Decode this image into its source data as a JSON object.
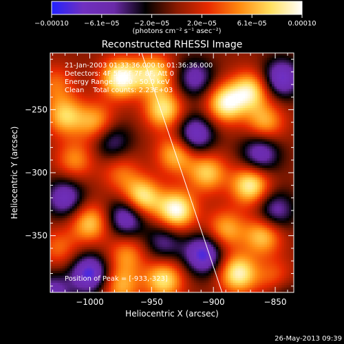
{
  "colorbar": {
    "tick_labels": [
      "−0.00010",
      "−6.1e−05",
      "−2.0e−05",
      "2.0e−05",
      "6.1e−05",
      "0.00010"
    ],
    "unit_label": "(photons cm⁻² s⁻¹ asec⁻²)",
    "range": [
      -0.0001,
      0.0001
    ]
  },
  "chart_data": {
    "type": "heatmap",
    "title": "Reconstructed RHESSI Image",
    "xlabel": "Heliocentric X (arcsec)",
    "ylabel": "Heliocentric Y (arcsec)",
    "xlim": [
      -1032,
      -835
    ],
    "ylim": [
      -395,
      -205
    ],
    "x_ticks": [
      -1000,
      -950,
      -900,
      -850
    ],
    "y_ticks": [
      -250,
      -300,
      -350
    ],
    "x_tick_labels": [
      "−1000",
      "−950",
      "−900",
      "−850"
    ],
    "y_tick_labels": [
      "−250",
      "−300",
      "−350"
    ],
    "info_lines": [
      "21-Jan-2003 01:33:36.000 to 01:36:36.000",
      "Detectors: 4F 5F 6F 7F 8F, Att 0",
      "Energy Range: 25.0 - 50.0 keV",
      "Clean    Total counts: 2.23E+03"
    ],
    "peak_label": "Position of Peak = [-933,-323]",
    "peak": [
      -933,
      -323
    ],
    "limb_line": [
      [
        -958,
        -205
      ],
      [
        -893,
        -395
      ]
    ],
    "colormap": [
      "#2222ff",
      "#7030c0",
      "#6a2aa8",
      "#000000",
      "#8a1a00",
      "#e82a00",
      "#ff8a10",
      "#ffe060",
      "#ffffff"
    ],
    "blobs": [
      {
        "x": -975,
        "y": -225,
        "v": 0.0001
      },
      {
        "x": -948,
        "y": -222,
        "v": 8e-05
      },
      {
        "x": -1020,
        "y": -255,
        "v": 7e-05
      },
      {
        "x": -995,
        "y": -260,
        "v": 6e-05
      },
      {
        "x": -940,
        "y": -250,
        "v": 8e-05
      },
      {
        "x": -930,
        "y": -285,
        "v": 7e-05
      },
      {
        "x": -1012,
        "y": -290,
        "v": 5e-05
      },
      {
        "x": -975,
        "y": -300,
        "v": 4e-05
      },
      {
        "x": -958,
        "y": -320,
        "v": 9e-05
      },
      {
        "x": -930,
        "y": -330,
        "v": 0.0001
      },
      {
        "x": -1000,
        "y": -340,
        "v": 7e-05
      },
      {
        "x": -1025,
        "y": -360,
        "v": 4e-05
      },
      {
        "x": -970,
        "y": -365,
        "v": 5e-05
      },
      {
        "x": -940,
        "y": -385,
        "v": 8e-05
      },
      {
        "x": -975,
        "y": -390,
        "v": 6e-05
      },
      {
        "x": -890,
        "y": -245,
        "v": 9e-05
      },
      {
        "x": -870,
        "y": -235,
        "v": 8e-05
      },
      {
        "x": -858,
        "y": -260,
        "v": 6e-05
      },
      {
        "x": -905,
        "y": -300,
        "v": 7e-05
      },
      {
        "x": -870,
        "y": -310,
        "v": 9e-05
      },
      {
        "x": -890,
        "y": -345,
        "v": 6e-05
      },
      {
        "x": -860,
        "y": -350,
        "v": 7e-05
      },
      {
        "x": -880,
        "y": -380,
        "v": 9e-05
      },
      {
        "x": -850,
        "y": -385,
        "v": 5e-05
      },
      {
        "x": -1028,
        "y": -230,
        "v": 4e-05
      },
      {
        "x": -1000,
        "y": -380,
        "v": -9e-05
      },
      {
        "x": -1020,
        "y": -320,
        "v": -7e-05
      },
      {
        "x": -970,
        "y": -335,
        "v": -8e-05
      },
      {
        "x": -982,
        "y": -275,
        "v": -5e-05
      },
      {
        "x": -915,
        "y": -270,
        "v": -8e-05
      },
      {
        "x": -908,
        "y": -365,
        "v": -9e-05
      },
      {
        "x": -862,
        "y": -285,
        "v": -7e-05
      },
      {
        "x": -845,
        "y": -225,
        "v": -8e-05
      },
      {
        "x": -915,
        "y": -225,
        "v": -6e-05
      },
      {
        "x": -850,
        "y": -330,
        "v": -6e-05
      },
      {
        "x": -940,
        "y": -355,
        "v": -5e-05
      },
      {
        "x": -1030,
        "y": -395,
        "v": -6e-05
      },
      {
        "x": -845,
        "y": -395,
        "v": -4e-05
      }
    ]
  },
  "footer": {
    "timestamp": "26-May-2013 09:39"
  }
}
